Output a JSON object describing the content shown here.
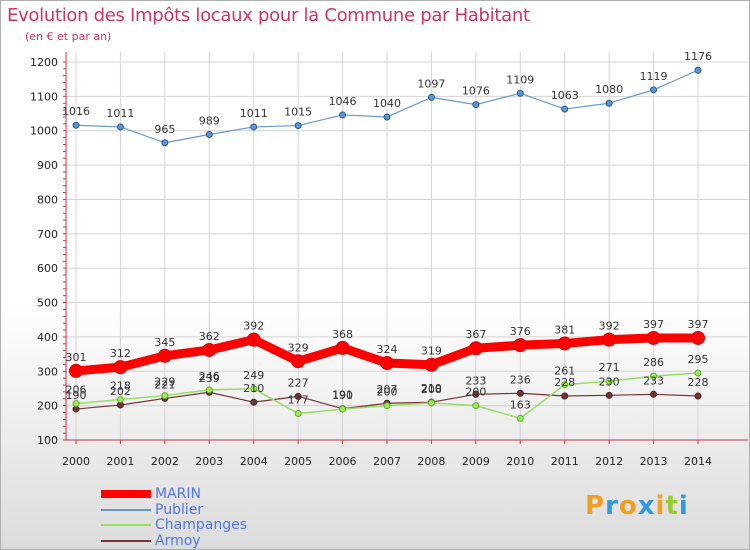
{
  "title": "Evolution des Impôts locaux pour la Commune par Habitant",
  "subtitle": "(en € et par an)",
  "logo": {
    "letters": [
      "P",
      "r",
      "o",
      "x",
      "i",
      "t",
      "i"
    ],
    "colors": [
      "#f0a020",
      "#3399dd",
      "#f0a020",
      "#3399dd",
      "#f0a020",
      "#99cc33",
      "#3399dd"
    ]
  },
  "chart_data": {
    "type": "line",
    "x": [
      "2000",
      "2001",
      "2002",
      "2003",
      "2004",
      "2005",
      "2006",
      "2007",
      "2008",
      "2009",
      "2010",
      "2011",
      "2012",
      "2013",
      "2014"
    ],
    "ylim": [
      100,
      1200
    ],
    "yticks": [
      "100",
      "200",
      "300",
      "400",
      "500",
      "600",
      "700",
      "800",
      "900",
      "1000",
      "1100",
      "1200"
    ],
    "grid": true,
    "series": [
      {
        "name": "MARIN",
        "color": "#ff0000",
        "values": [
          301,
          312,
          345,
          362,
          392,
          329,
          368,
          324,
          319,
          367,
          376,
          381,
          392,
          397,
          397
        ]
      },
      {
        "name": "Publier",
        "color": "#6699cc",
        "values": [
          1016,
          1011,
          965,
          989,
          1011,
          1015,
          1046,
          1040,
          1097,
          1076,
          1109,
          1063,
          1080,
          1119,
          1176
        ]
      },
      {
        "name": "Champanges",
        "color": "#99dd66",
        "values": [
          206,
          218,
          229,
          246,
          249,
          177,
          190,
          200,
          208,
          200,
          163,
          261,
          271,
          286,
          295
        ]
      },
      {
        "name": "Armoy",
        "color": "#773333",
        "values": [
          190,
          202,
          221,
          239,
          210,
          227,
          191,
          207,
          210,
          233,
          236,
          228,
          230,
          233,
          228
        ]
      }
    ]
  }
}
